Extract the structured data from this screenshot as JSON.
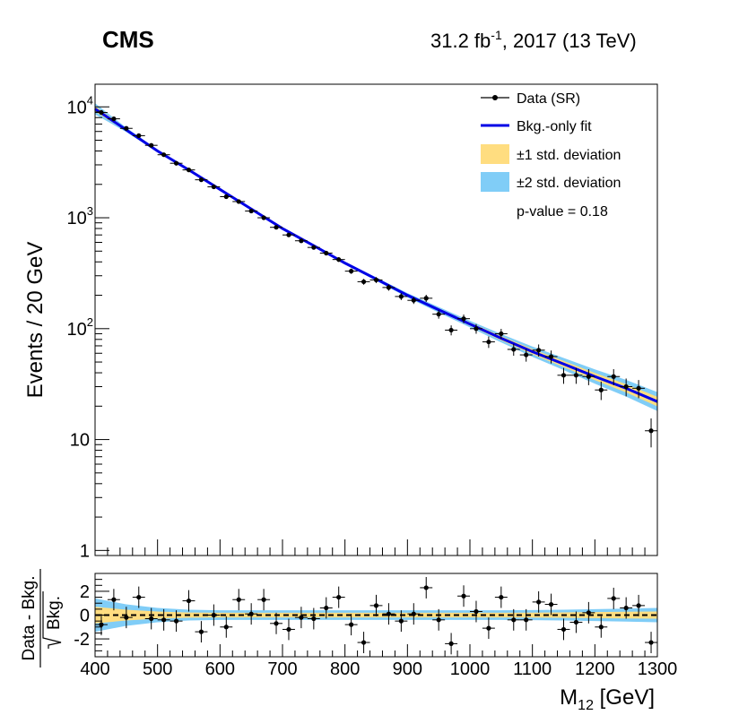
{
  "header": {
    "experiment": "CMS",
    "lumi_value": "31.2 fb",
    "lumi_exp": "-1",
    "lumi_rest": ", 2017 (13 TeV)"
  },
  "legend": {
    "data": "Data (SR)",
    "fit": "Bkg.-only fit",
    "band1": "±1 std. deviation",
    "band2": "±2 std. deviation",
    "pvalue": "p-value = 0.18"
  },
  "colors": {
    "fit": "#0000e6",
    "band1": "#ffdd80",
    "band2": "#80cdf7",
    "data": "#000000",
    "signal": "#cc0000"
  },
  "chart_data": {
    "type": "scatter",
    "title": "",
    "xlabel_main": "M",
    "xlabel_sub": "12",
    "xlabel_unit": " [GeV]",
    "ylabel": "Events / 20 GeV",
    "ratio_ylabel_top": "Data - Bkg.",
    "ratio_ylabel_bottom": "Bkg.",
    "xlim": [
      400,
      1300
    ],
    "ylim": [
      0.9,
      16000
    ],
    "yscale": "log",
    "ratio_ylim": [
      -3.5,
      3.5
    ],
    "xticks": [
      "400",
      "500",
      "600",
      "700",
      "800",
      "900",
      "1000",
      "1100",
      "1200",
      "1300"
    ],
    "y_major_ticks": [
      {
        "base": "10",
        "exp": "4",
        "value": 10000
      },
      {
        "base": "10",
        "exp": "3",
        "value": 1000
      },
      {
        "base": "10",
        "exp": "2",
        "value": 100
      },
      {
        "base": "10",
        "exp": "",
        "value": 10
      },
      {
        "base": "1",
        "exp": "",
        "value": 1
      }
    ],
    "ratio_yticks": [
      "2",
      "0",
      "-2"
    ],
    "ratio_ytick_values": [
      2,
      0,
      -2
    ],
    "fit_points": [
      [
        400,
        9600
      ],
      [
        450,
        6200
      ],
      [
        500,
        4000
      ],
      [
        550,
        2700
      ],
      [
        600,
        1800
      ],
      [
        650,
        1200
      ],
      [
        700,
        800
      ],
      [
        750,
        560
      ],
      [
        800,
        390
      ],
      [
        850,
        280
      ],
      [
        900,
        200
      ],
      [
        950,
        148
      ],
      [
        1000,
        110
      ],
      [
        1050,
        82
      ],
      [
        1100,
        62
      ],
      [
        1150,
        48
      ],
      [
        1200,
        37
      ],
      [
        1250,
        29
      ],
      [
        1300,
        22
      ]
    ],
    "band2_frac_log": [
      0.05,
      0.02,
      0.012,
      0.01,
      0.01,
      0.01,
      0.01,
      0.01,
      0.012,
      0.015,
      0.02,
      0.025,
      0.03,
      0.038,
      0.046,
      0.055,
      0.065,
      0.075,
      0.085
    ],
    "ratio_band2": [
      1.4,
      0.9,
      0.6,
      0.45,
      0.4,
      0.4,
      0.4,
      0.4,
      0.4,
      0.4,
      0.4,
      0.4,
      0.4,
      0.4,
      0.42,
      0.45,
      0.5,
      0.55,
      0.6
    ],
    "ratio_band1": [
      0.7,
      0.45,
      0.3,
      0.22,
      0.2,
      0.2,
      0.2,
      0.2,
      0.2,
      0.2,
      0.2,
      0.2,
      0.2,
      0.2,
      0.21,
      0.23,
      0.25,
      0.28,
      0.3
    ],
    "data_points": [
      {
        "x": 410,
        "y": 8900,
        "err": 95,
        "pull": -0.8
      },
      {
        "x": 430,
        "y": 7800,
        "err": 88,
        "pull": 1.3
      },
      {
        "x": 450,
        "y": 6400,
        "err": 80,
        "pull": -0.2
      },
      {
        "x": 470,
        "y": 5500,
        "err": 74,
        "pull": 1.5
      },
      {
        "x": 490,
        "y": 4500,
        "err": 67,
        "pull": -0.3
      },
      {
        "x": 510,
        "y": 3700,
        "err": 61,
        "pull": -0.4
      },
      {
        "x": 530,
        "y": 3100,
        "err": 56,
        "pull": -0.5
      },
      {
        "x": 550,
        "y": 2700,
        "err": 52,
        "pull": 1.2
      },
      {
        "x": 570,
        "y": 2200,
        "err": 47,
        "pull": -1.4
      },
      {
        "x": 590,
        "y": 1900,
        "err": 44,
        "pull": 0.0
      },
      {
        "x": 610,
        "y": 1550,
        "err": 39,
        "pull": -1.0
      },
      {
        "x": 630,
        "y": 1400,
        "err": 37,
        "pull": 1.3
      },
      {
        "x": 650,
        "y": 1150,
        "err": 34,
        "pull": 0.1
      },
      {
        "x": 670,
        "y": 1000,
        "err": 32,
        "pull": 1.3
      },
      {
        "x": 690,
        "y": 820,
        "err": 29,
        "pull": -0.7
      },
      {
        "x": 710,
        "y": 700,
        "err": 26,
        "pull": -1.2
      },
      {
        "x": 730,
        "y": 620,
        "err": 25,
        "pull": -0.2
      },
      {
        "x": 750,
        "y": 540,
        "err": 23,
        "pull": -0.3
      },
      {
        "x": 770,
        "y": 480,
        "err": 22,
        "pull": 0.6
      },
      {
        "x": 790,
        "y": 420,
        "err": 20,
        "pull": 1.5
      },
      {
        "x": 810,
        "y": 330,
        "err": 18,
        "pull": -0.8
      },
      {
        "x": 830,
        "y": 265,
        "err": 16,
        "pull": -2.3
      },
      {
        "x": 850,
        "y": 275,
        "err": 17,
        "pull": 0.8
      },
      {
        "x": 870,
        "y": 235,
        "err": 15,
        "pull": 0.1
      },
      {
        "x": 890,
        "y": 195,
        "err": 14,
        "pull": -0.5
      },
      {
        "x": 910,
        "y": 180,
        "err": 13,
        "pull": 0.1
      },
      {
        "x": 930,
        "y": 188,
        "err": 14,
        "pull": 2.3
      },
      {
        "x": 950,
        "y": 135,
        "err": 12,
        "pull": -0.4
      },
      {
        "x": 970,
        "y": 97,
        "err": 10,
        "pull": -2.4
      },
      {
        "x": 990,
        "y": 123,
        "err": 11,
        "pull": 1.6
      },
      {
        "x": 1010,
        "y": 100,
        "err": 10,
        "pull": 0.3
      },
      {
        "x": 1030,
        "y": 76,
        "err": 9,
        "pull": -1.1
      },
      {
        "x": 1050,
        "y": 90,
        "err": 9.5,
        "pull": 1.5
      },
      {
        "x": 1070,
        "y": 65,
        "err": 8,
        "pull": -0.4
      },
      {
        "x": 1090,
        "y": 58,
        "err": 7.6,
        "pull": -0.4
      },
      {
        "x": 1110,
        "y": 64,
        "err": 8,
        "pull": 1.1
      },
      {
        "x": 1130,
        "y": 56,
        "err": 7.5,
        "pull": 0.9
      },
      {
        "x": 1150,
        "y": 38,
        "err": 6.2,
        "pull": -1.2
      },
      {
        "x": 1170,
        "y": 38,
        "err": 6.2,
        "pull": -0.6
      },
      {
        "x": 1190,
        "y": 37,
        "err": 6.1,
        "pull": 0.2
      },
      {
        "x": 1210,
        "y": 28,
        "err": 5.3,
        "pull": -1.0
      },
      {
        "x": 1230,
        "y": 37,
        "err": 6.1,
        "pull": 1.4
      },
      {
        "x": 1250,
        "y": 30,
        "err": 5.5,
        "pull": 0.6
      },
      {
        "x": 1270,
        "y": 29,
        "err": 5.4,
        "pull": 0.8
      },
      {
        "x": 1290,
        "y": 12,
        "err": 3.5,
        "pull": -2.3
      }
    ]
  }
}
